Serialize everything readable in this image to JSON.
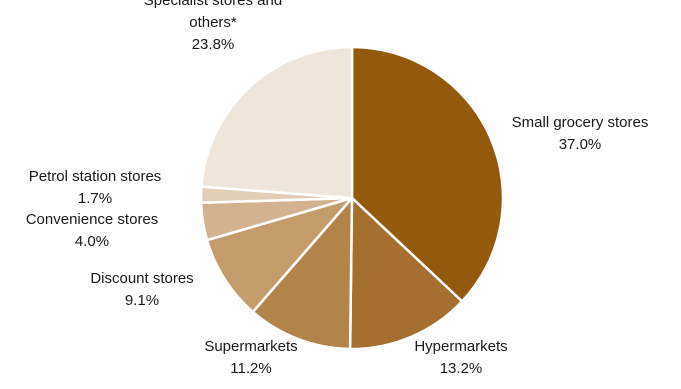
{
  "chart_data": {
    "type": "pie",
    "slices": [
      {
        "label": [
          "Small grocery stores"
        ],
        "pct_label": "37.0%",
        "value": 37.0,
        "color": "#93590d"
      },
      {
        "label": [
          "Hypermarkets"
        ],
        "pct_label": "13.2%",
        "value": 13.2,
        "color": "#a5702f"
      },
      {
        "label": [
          "Supermarkets"
        ],
        "pct_label": "11.2%",
        "value": 11.2,
        "color": "#b3844a"
      },
      {
        "label": [
          "Discount stores"
        ],
        "pct_label": "9.1%",
        "value": 9.1,
        "color": "#c49c6c"
      },
      {
        "label": [
          "Convenience stores"
        ],
        "pct_label": "4.0%",
        "value": 4.0,
        "color": "#d3b28f"
      },
      {
        "label": [
          "Petrol station stores"
        ],
        "pct_label": "1.7%",
        "value": 1.7,
        "color": "#e2cdb7"
      },
      {
        "label": [
          "Specialist stores and",
          "others*"
        ],
        "pct_label": "23.8%",
        "value": 23.8,
        "color": "#f0e5da"
      }
    ],
    "start_angle": "12 o'clock",
    "direction": "clockwise",
    "legend": "none"
  }
}
